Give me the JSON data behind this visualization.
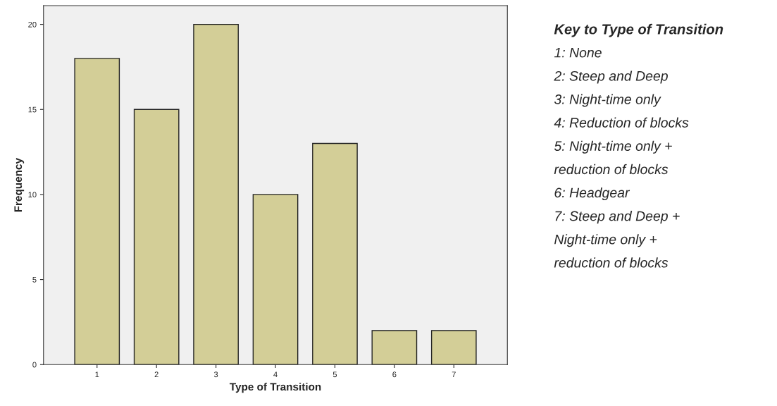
{
  "chart_data": {
    "type": "bar",
    "xlabel": "Type of Transition",
    "ylabel": "Frequency",
    "categories": [
      "1",
      "2",
      "3",
      "4",
      "5",
      "6",
      "7"
    ],
    "values": [
      18,
      15,
      20,
      10,
      13,
      2,
      2
    ],
    "color": "#d3ce97",
    "ylim": [
      0,
      21.1
    ],
    "yticks": [
      0,
      5,
      10,
      15,
      20
    ],
    "grid": false,
    "annotations": [
      "Key to Type of Transition",
      "1: None",
      "2: Steep and Deep",
      "3: Night-time only",
      "4: Reduction of blocks",
      "5: Night-time only +",
      "reduction of blocks",
      "6: Headgear",
      "7: Steep and Deep +",
      "Night-time only +",
      "reduction of blocks"
    ]
  }
}
